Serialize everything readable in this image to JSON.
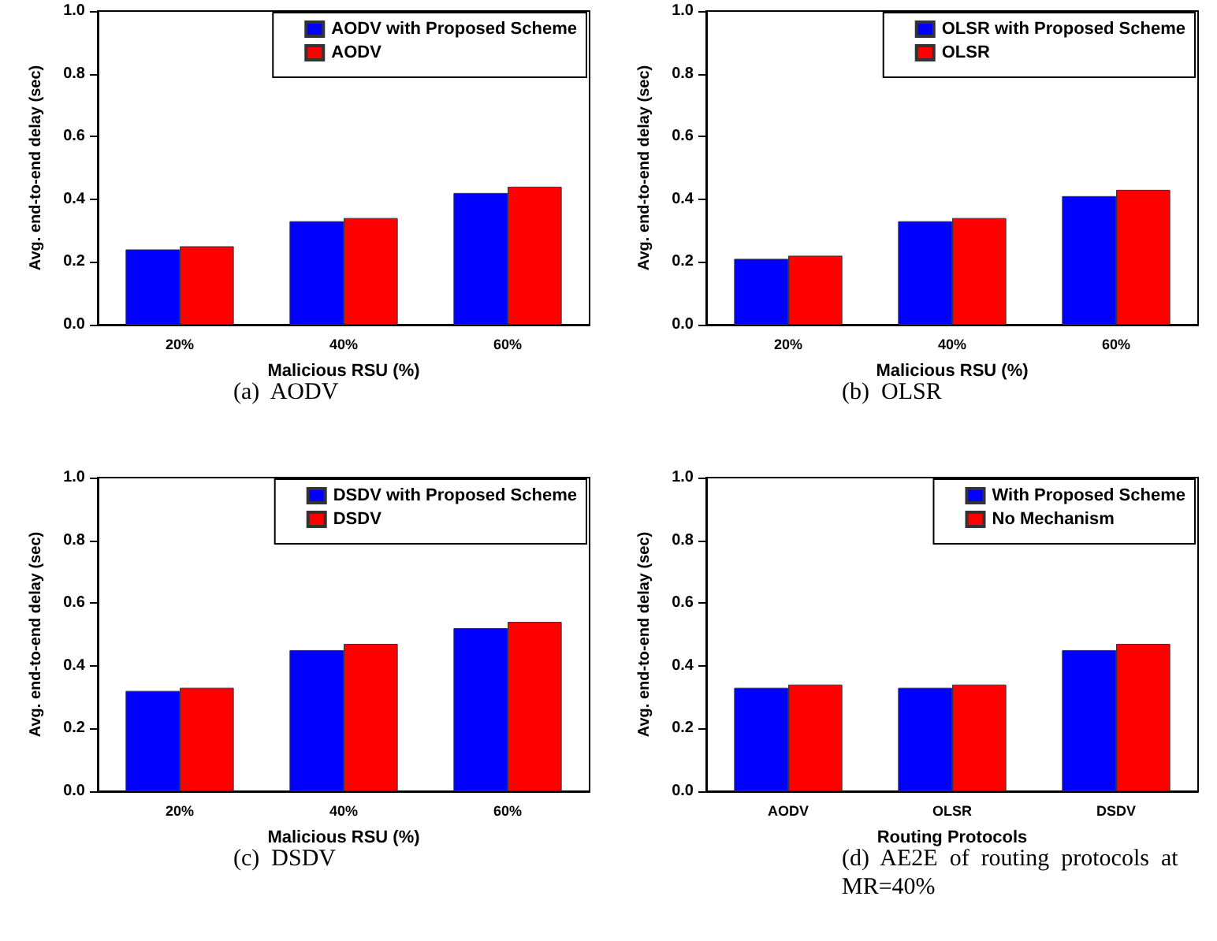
{
  "chart_data": [
    {
      "type": "bar",
      "categories": [
        "20%",
        "40%",
        "60%"
      ],
      "xlabel": "Malicious RSU (%)",
      "ylabel": "Avg. end-to-end delay (sec)",
      "ylim": [
        0,
        1
      ],
      "yticks": [
        {
          "value": 0,
          "label": "0.0"
        },
        {
          "value": 0.2,
          "label": "0.2"
        },
        {
          "value": 0.4,
          "label": "0.4"
        },
        {
          "value": 0.6,
          "label": "0.6"
        },
        {
          "value": 0.8,
          "label": "0.8"
        },
        {
          "value": 1,
          "label": "1.0"
        }
      ],
      "legend": "top right",
      "annotations": [
        "(a)  AODV"
      ],
      "series": [
        {
          "name": "AODV with Proposed Scheme",
          "color": "#0000ff",
          "values": [
            0.24,
            0.33,
            0.42
          ]
        },
        {
          "name": "AODV",
          "color": "#ff0000",
          "values": [
            0.25,
            0.34,
            0.44
          ]
        }
      ]
    },
    {
      "type": "bar",
      "categories": [
        "20%",
        "40%",
        "60%"
      ],
      "xlabel": "Malicious RSU (%)",
      "ylabel": "Avg. end-to-end delay (sec)",
      "ylim": [
        0,
        1
      ],
      "yticks": [
        {
          "value": 0,
          "label": "0.0"
        },
        {
          "value": 0.2,
          "label": "0.2"
        },
        {
          "value": 0.4,
          "label": "0.4"
        },
        {
          "value": 0.6,
          "label": "0.6"
        },
        {
          "value": 0.8,
          "label": "0.8"
        },
        {
          "value": 1,
          "label": "1.0"
        }
      ],
      "legend": "top right",
      "annotations": [
        "(b)  OLSR"
      ],
      "series": [
        {
          "name": "OLSR with Proposed Scheme",
          "color": "#0000ff",
          "values": [
            0.21,
            0.33,
            0.41
          ]
        },
        {
          "name": "OLSR",
          "color": "#ff0000",
          "values": [
            0.22,
            0.34,
            0.43
          ]
        }
      ]
    },
    {
      "type": "bar",
      "categories": [
        "20%",
        "40%",
        "60%"
      ],
      "xlabel": "Malicious RSU (%)",
      "ylabel": "Avg. end-to-end delay (sec)",
      "ylim": [
        0,
        1
      ],
      "yticks": [
        {
          "value": 0,
          "label": "0.0"
        },
        {
          "value": 0.2,
          "label": "0.2"
        },
        {
          "value": 0.4,
          "label": "0.4"
        },
        {
          "value": 0.6,
          "label": "0.6"
        },
        {
          "value": 0.8,
          "label": "0.8"
        },
        {
          "value": 1,
          "label": "1.0"
        }
      ],
      "legend": "top right",
      "annotations": [
        "(c)  DSDV"
      ],
      "series": [
        {
          "name": "DSDV with Proposed Scheme",
          "color": "#0000ff",
          "values": [
            0.32,
            0.45,
            0.52
          ]
        },
        {
          "name": "DSDV",
          "color": "#ff0000",
          "values": [
            0.33,
            0.47,
            0.54
          ]
        }
      ]
    },
    {
      "type": "bar",
      "categories": [
        "AODV",
        "OLSR",
        "DSDV"
      ],
      "xlabel": "Routing Protocols",
      "ylabel": "Avg. end-to-end delay (sec)",
      "ylim": [
        0,
        1
      ],
      "yticks": [
        {
          "value": 0,
          "label": "0.0"
        },
        {
          "value": 0.2,
          "label": "0.2"
        },
        {
          "value": 0.4,
          "label": "0.4"
        },
        {
          "value": 0.6,
          "label": "0.6"
        },
        {
          "value": 0.8,
          "label": "0.8"
        },
        {
          "value": 1,
          "label": "1.0"
        }
      ],
      "legend": "top right",
      "annotations": [
        "(d)  AE2E  of  routing  protocols  at MR=40%"
      ],
      "series": [
        {
          "name": "With Proposed Scheme",
          "color": "#0000ff",
          "values": [
            0.33,
            0.33,
            0.45
          ]
        },
        {
          "name": "No Mechanism",
          "color": "#ff0000",
          "values": [
            0.34,
            0.34,
            0.47
          ]
        }
      ]
    }
  ]
}
